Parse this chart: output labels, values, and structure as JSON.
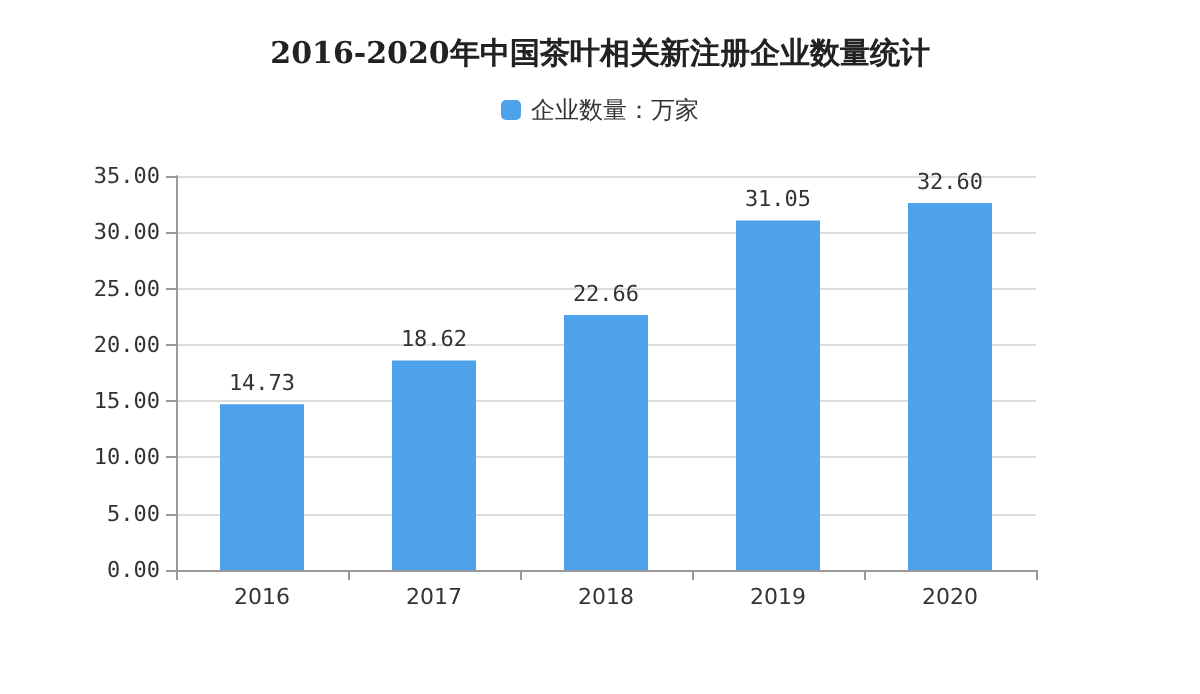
{
  "chart_data": {
    "type": "bar",
    "title": "2016-2020年中国茶叶相关新注册企业数量统计",
    "categories": [
      "2016",
      "2017",
      "2018",
      "2019",
      "2020"
    ],
    "series": [
      {
        "name": "企业数量：万家",
        "color": "#4ea1eb",
        "values": [
          14.73,
          18.62,
          22.66,
          31.05,
          32.6
        ],
        "value_labels": [
          "14.73",
          "18.62",
          "22.66",
          "31.05",
          "32.60"
        ]
      }
    ],
    "ylim": [
      0,
      35
    ],
    "yticks": [
      {
        "value": 0,
        "label": "0.00"
      },
      {
        "value": 5,
        "label": "5.00"
      },
      {
        "value": 10,
        "label": "10.00"
      },
      {
        "value": 15,
        "label": "15.00"
      },
      {
        "value": 20,
        "label": "20.00"
      },
      {
        "value": 25,
        "label": "25.00"
      },
      {
        "value": 30,
        "label": "30.00"
      },
      {
        "value": 35,
        "label": "35.00"
      }
    ],
    "grid": "y",
    "legend": "top"
  }
}
